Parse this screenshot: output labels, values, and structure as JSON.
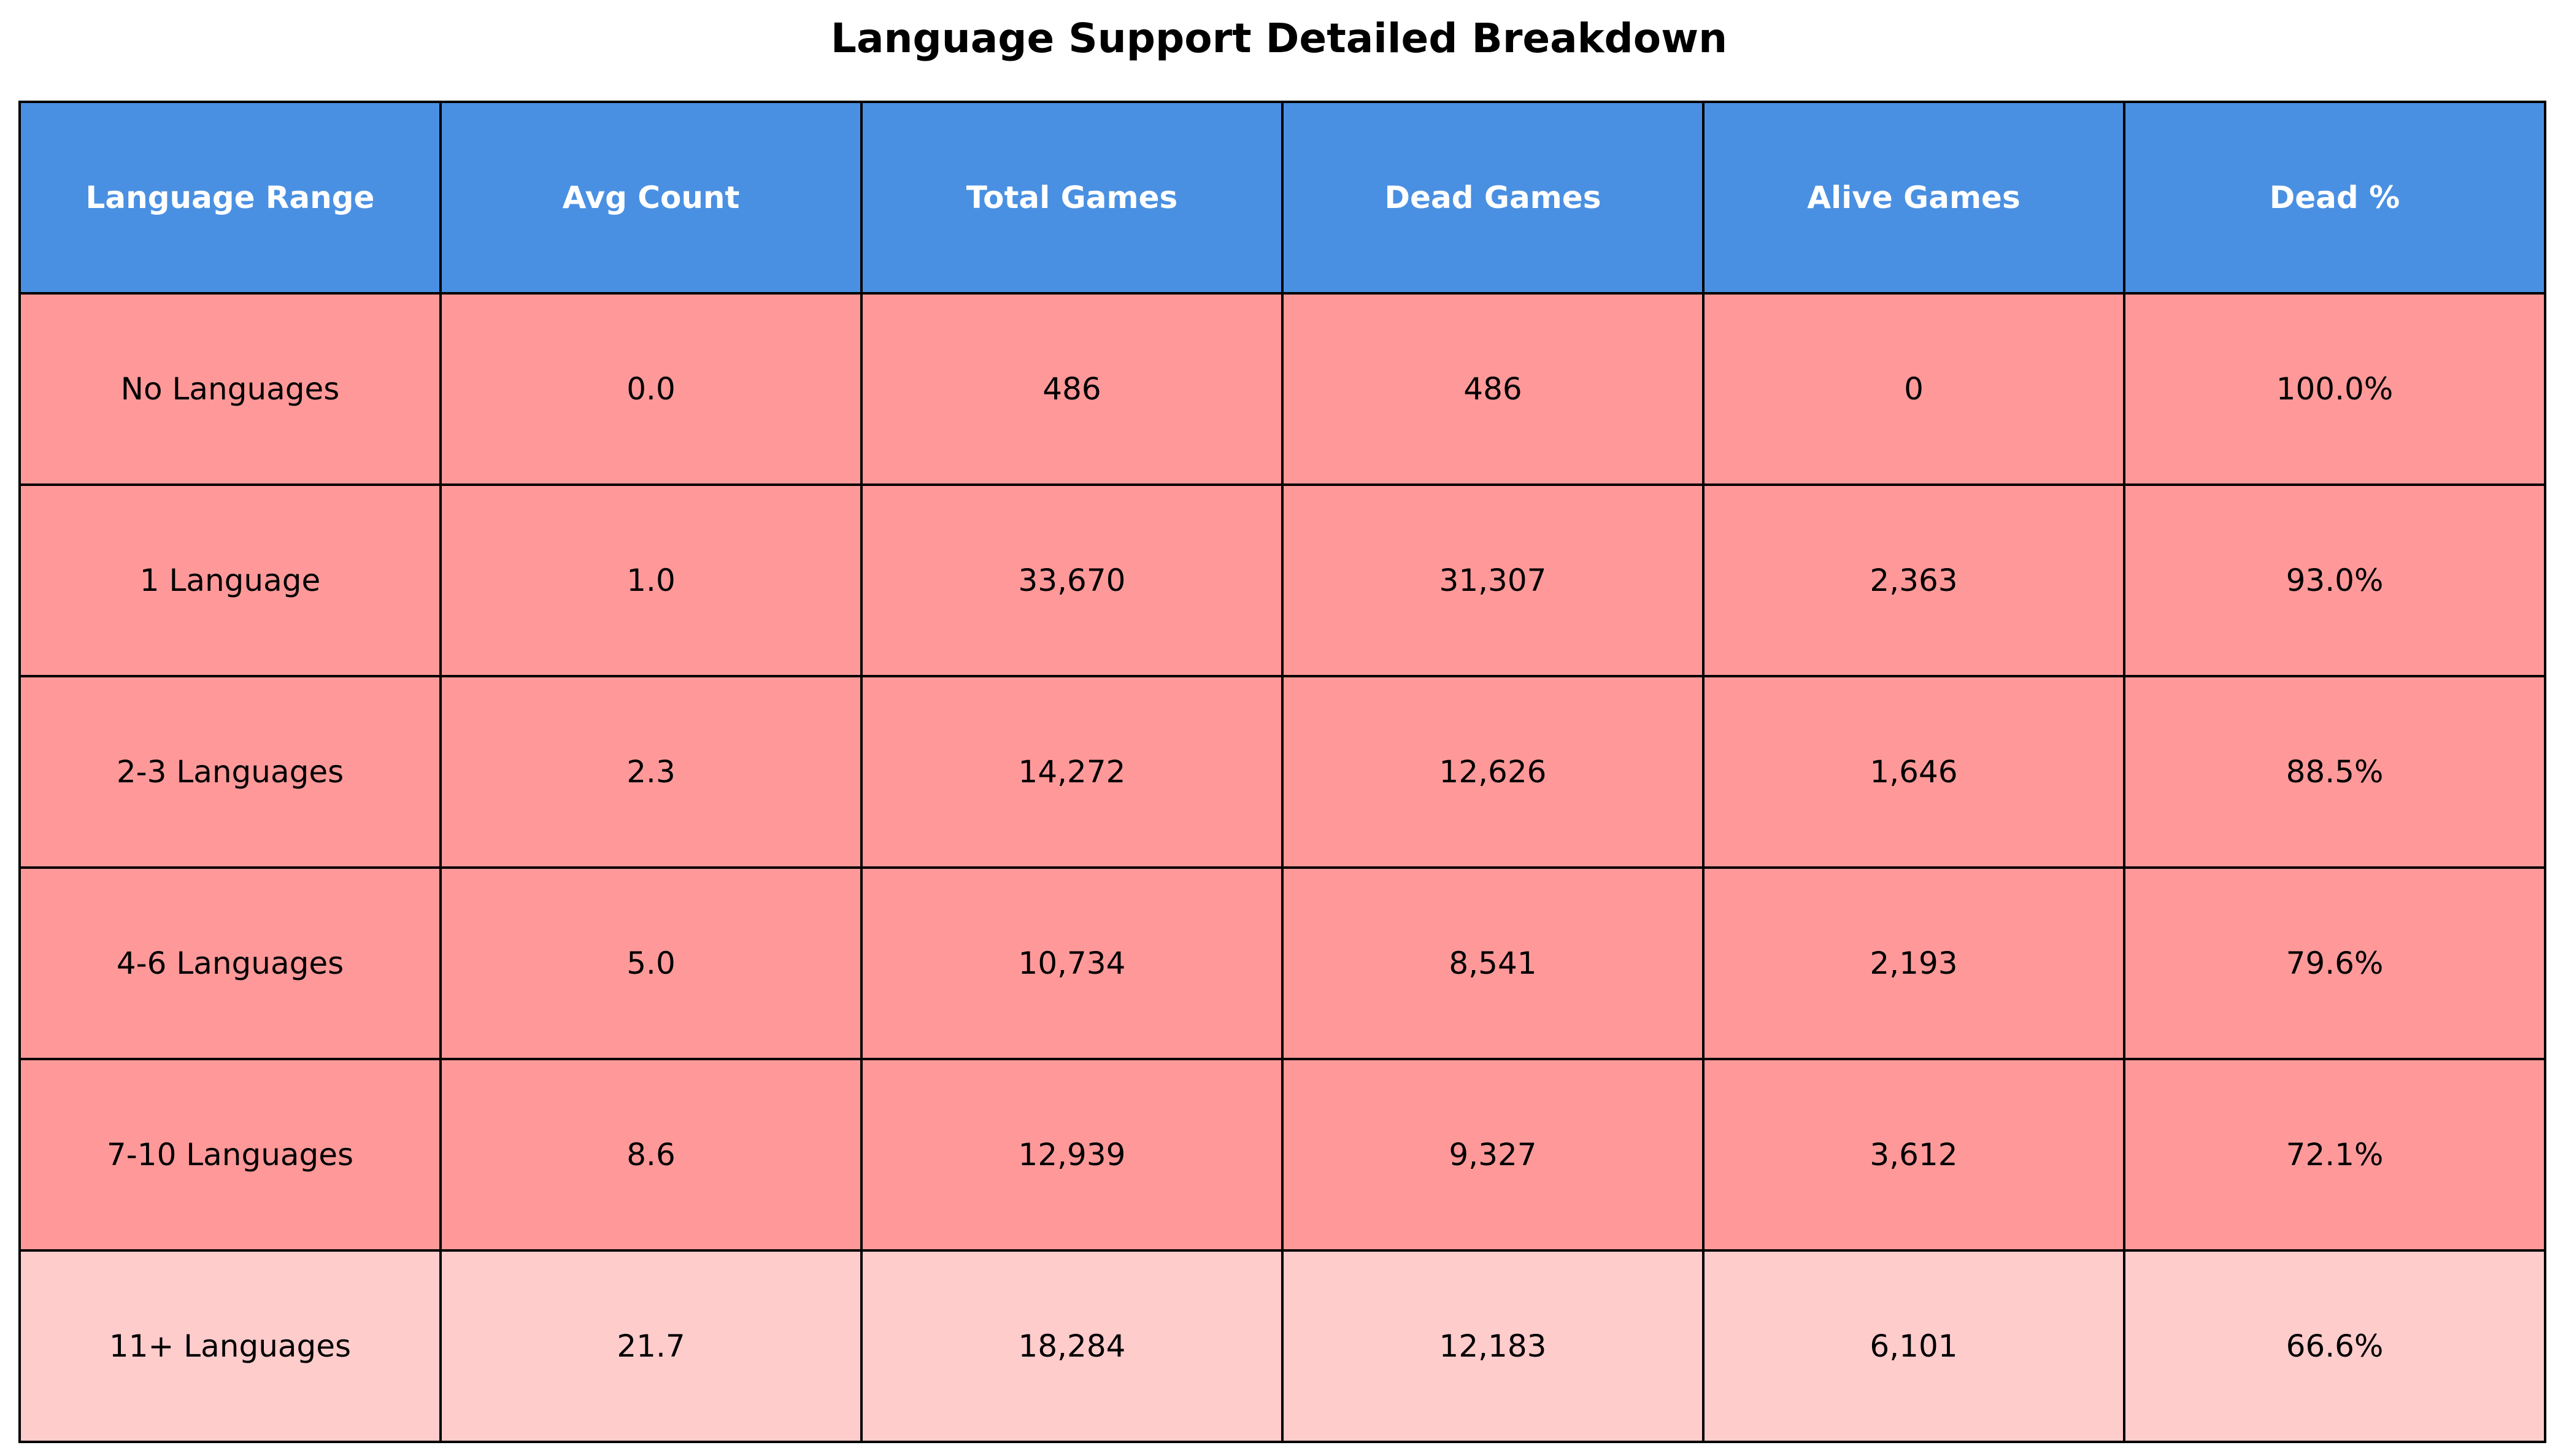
{
  "chart_data": {
    "type": "table",
    "title": "Language Support Detailed Breakdown",
    "columns": [
      "Language Range",
      "Avg Count",
      "Total Games",
      "Dead Games",
      "Alive Games",
      "Dead %"
    ],
    "rows": [
      [
        "No Languages",
        "0.0",
        "486",
        "486",
        "0",
        "100.0%"
      ],
      [
        "1 Language",
        "1.0",
        "33,670",
        "31,307",
        "2,363",
        "93.0%"
      ],
      [
        "2-3 Languages",
        "2.3",
        "14,272",
        "12,626",
        "1,646",
        "88.5%"
      ],
      [
        "4-6 Languages",
        "5.0",
        "10,734",
        "8,541",
        "2,193",
        "79.6%"
      ],
      [
        "7-10 Languages",
        "8.6",
        "12,939",
        "9,327",
        "3,612",
        "72.1%"
      ],
      [
        "11+ Languages",
        "21.7",
        "18,284",
        "12,183",
        "6,101",
        "66.6%"
      ]
    ],
    "colors": {
      "header_bg": "#4a90e2",
      "header_text": "#ffffff",
      "row_bg": "#ff9999",
      "last_row_bg": "#ffcccc",
      "border": "#000000"
    }
  }
}
